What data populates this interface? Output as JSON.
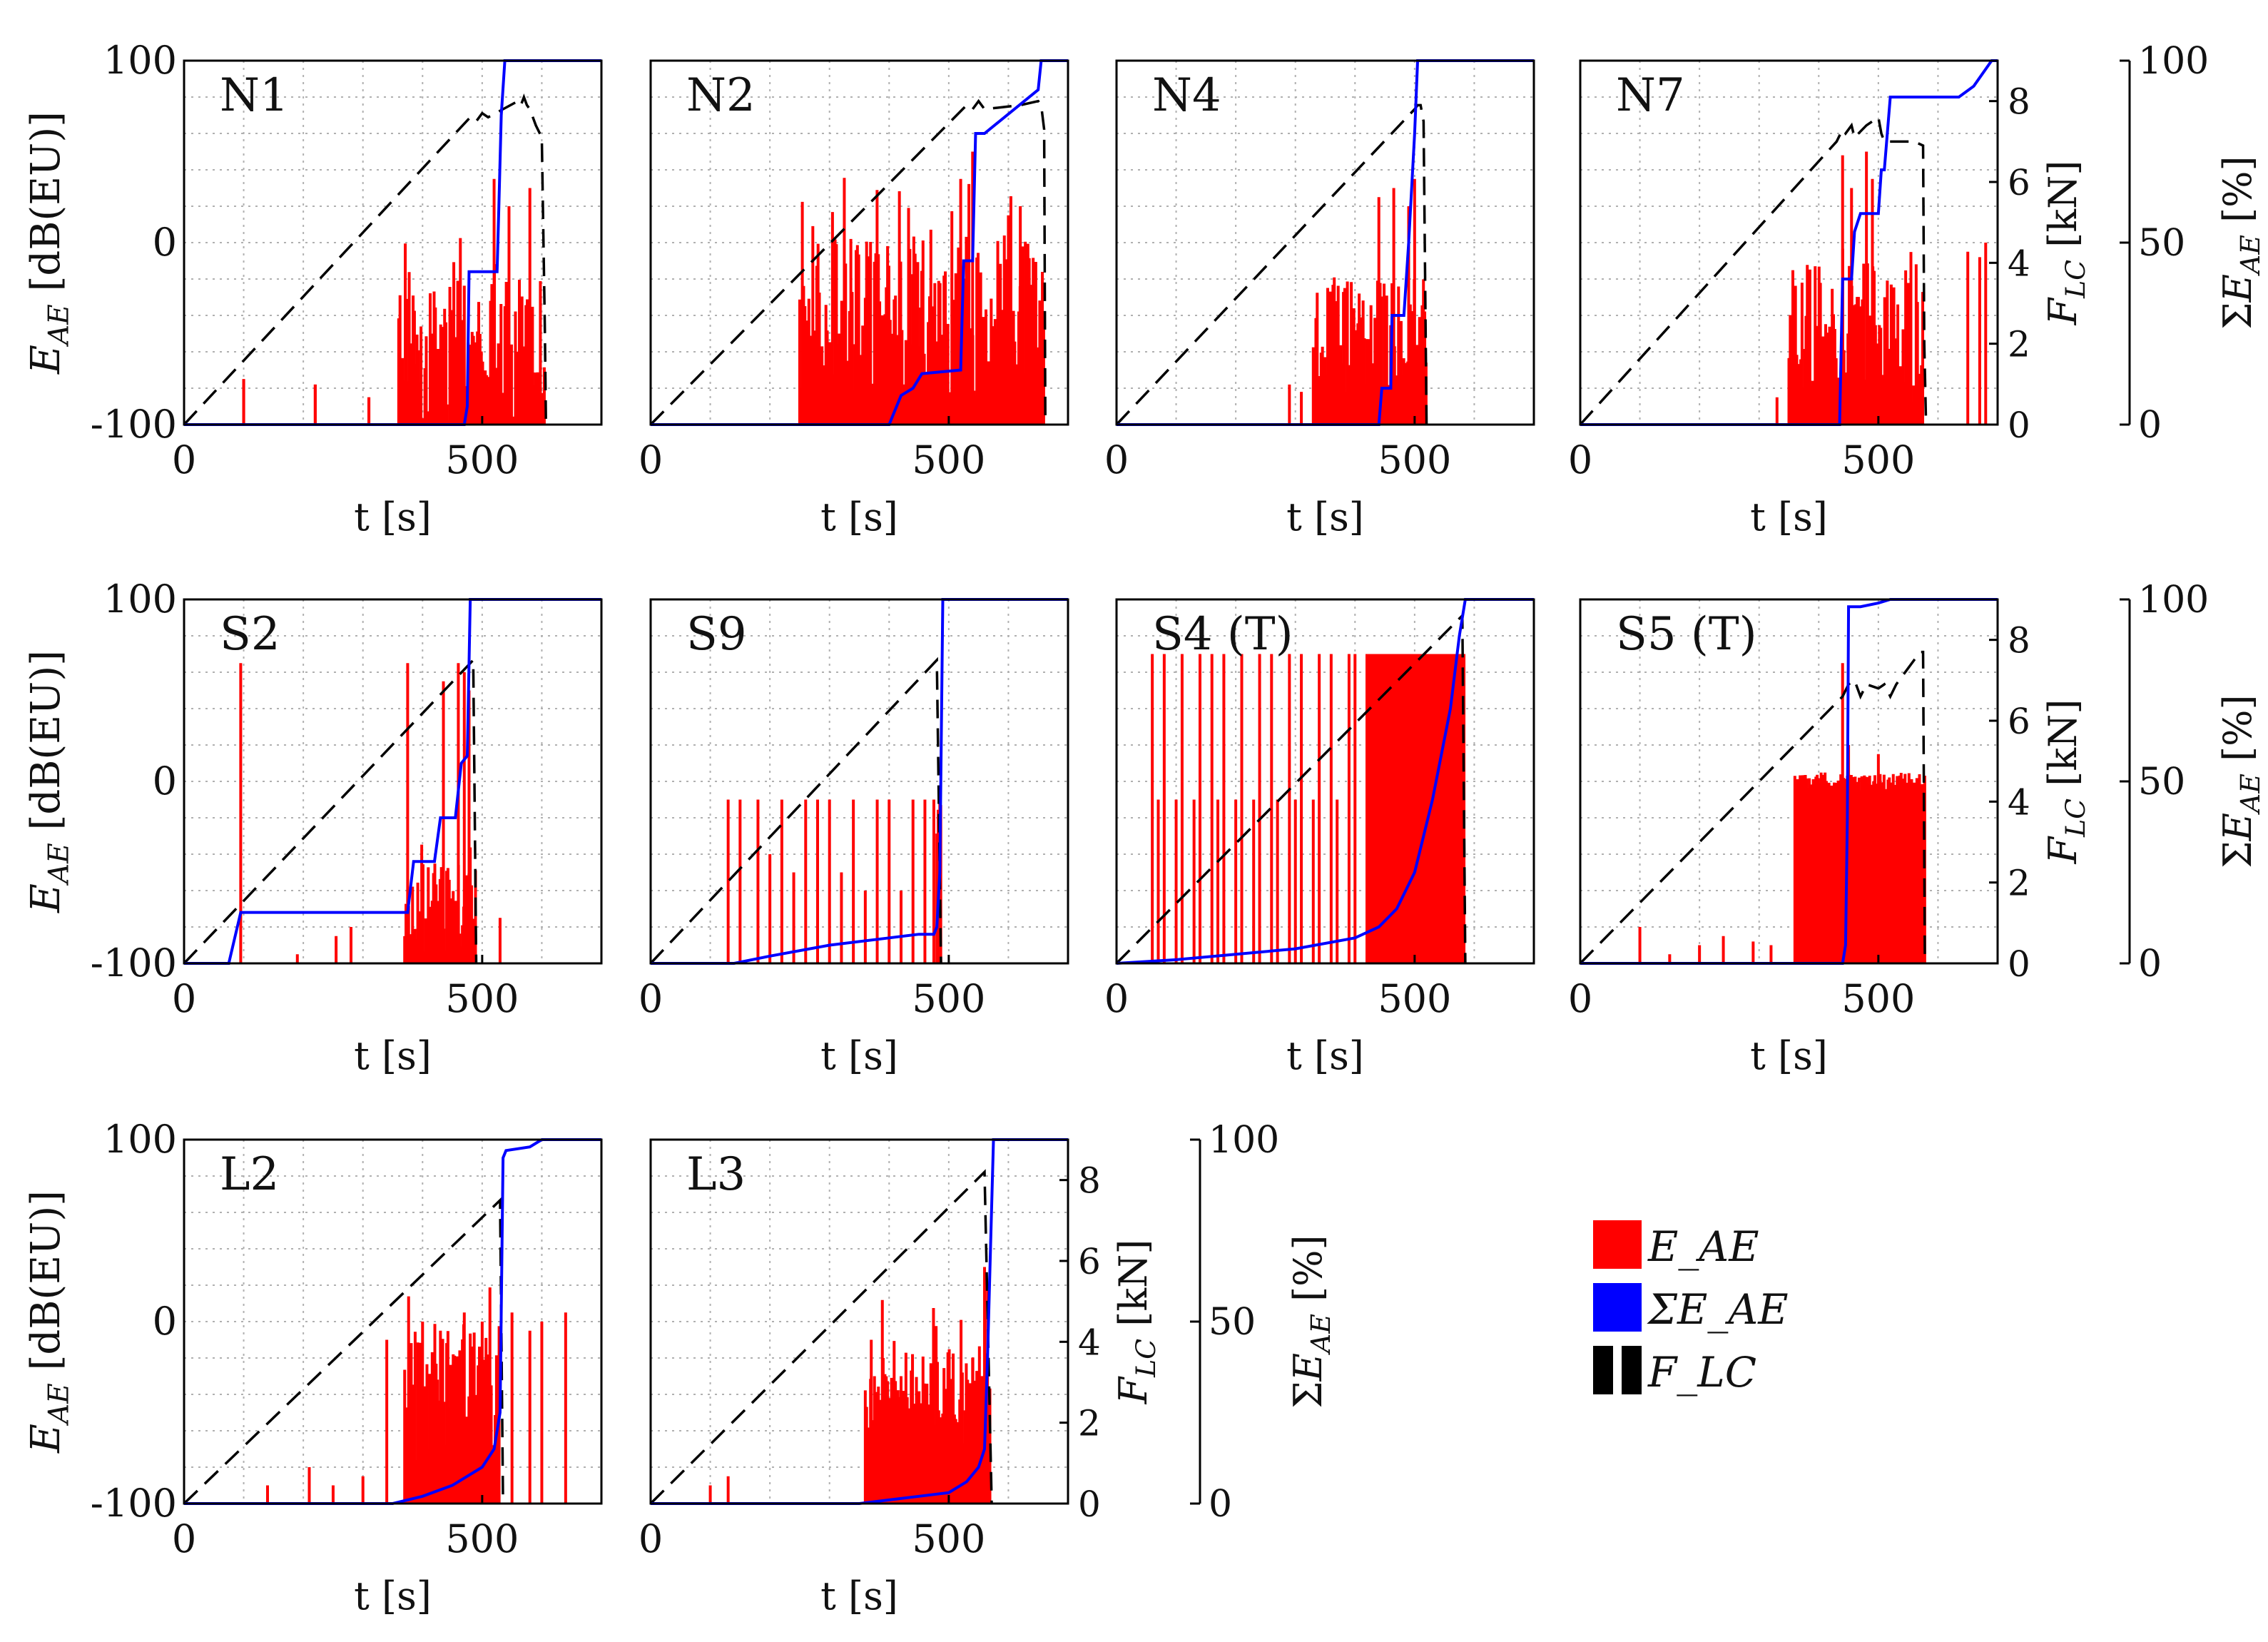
{
  "figure": {
    "tick_labels_x": [
      "0",
      "500"
    ],
    "tick_labels_left": [
      "100",
      "0",
      "-100"
    ],
    "tick_labels_force": [
      "0",
      "2",
      "4",
      "6",
      "8"
    ],
    "tick_labels_pct": [
      "0",
      "50",
      "100"
    ],
    "xlabel": "t [s]",
    "ylabel_left": "E_AE [dB(EU)]",
    "ylabel_force": "F_LC [kN]",
    "ylabel_pct": "ΣE_AE [%]"
  },
  "legend": {
    "items": [
      {
        "label": "E_AE",
        "color": "#ff0000",
        "style": "fill"
      },
      {
        "label": "ΣE_AE",
        "color": "#0000ff",
        "style": "fill"
      },
      {
        "label": "F_LC",
        "color": "#000000",
        "style": "dashed"
      }
    ]
  },
  "colors": {
    "ae": "#ff0000",
    "cum": "#0000ff",
    "force": "#000000",
    "grid": "#b0b0b0"
  },
  "chart_data": [
    {
      "type": "line",
      "title": "N1",
      "xlim": [
        0,
        700
      ],
      "ylim": [
        -100,
        100
      ],
      "y2lim": [
        0,
        9
      ],
      "y3lim": [
        0,
        100
      ],
      "force": {
        "x": [
          0,
          480,
          490,
          500,
          510,
          560,
          565,
          570,
          575,
          580,
          590,
          600,
          605,
          607
        ],
        "y": [
          0,
          7.6,
          7.5,
          7.7,
          7.6,
          8.0,
          7.9,
          8.1,
          7.9,
          7.8,
          7.4,
          7.1,
          2.5,
          0
        ]
      },
      "cumulative": {
        "x": [
          0,
          470,
          475,
          478,
          525,
          528,
          532,
          538,
          545,
          560,
          700
        ],
        "y": [
          0,
          0,
          5,
          42,
          42,
          60,
          85,
          100,
          100,
          100,
          100
        ]
      },
      "ae": {
        "start": 360,
        "end": 605,
        "base": -60,
        "spread": 40,
        "peaks": [
          [
            100,
            -75
          ],
          [
            220,
            -78
          ],
          [
            310,
            -85
          ],
          [
            520,
            35
          ],
          [
            545,
            20
          ],
          [
            580,
            30
          ]
        ],
        "isolated": [
          [
            100,
            -75
          ],
          [
            220,
            -78
          ],
          [
            310,
            -85
          ]
        ]
      }
    },
    {
      "type": "line",
      "title": "N2",
      "xlim": [
        0,
        700
      ],
      "ylim": [
        -100,
        100
      ],
      "y2lim": [
        0,
        9
      ],
      "y3lim": [
        0,
        100
      ],
      "force": {
        "x": [
          0,
          530,
          540,
          550,
          560,
          620,
          650,
          655,
          660,
          662
        ],
        "y": [
          0,
          7.9,
          7.8,
          8.0,
          7.8,
          7.9,
          8.0,
          7.9,
          7.3,
          0
        ]
      },
      "cumulative": {
        "x": [
          0,
          400,
          420,
          440,
          455,
          520,
          525,
          540,
          545,
          550,
          560,
          650,
          655,
          700
        ],
        "y": [
          0,
          0,
          8,
          10,
          14,
          15,
          45,
          45,
          80,
          80,
          80,
          92,
          100,
          100
        ]
      },
      "ae": {
        "start": 250,
        "end": 660,
        "base": -40,
        "spread": 45,
        "peaks": [
          [
            520,
            35
          ],
          [
            540,
            50
          ],
          [
            620,
            20
          ],
          [
            600,
            15
          ]
        ],
        "isolated": []
      }
    },
    {
      "type": "line",
      "title": "N4",
      "xlim": [
        0,
        700
      ],
      "ylim": [
        -100,
        100
      ],
      "y2lim": [
        0,
        9
      ],
      "y3lim": [
        0,
        100
      ],
      "force": {
        "x": [
          0,
          500,
          505,
          510,
          515,
          520
        ],
        "y": [
          0,
          7.8,
          7.9,
          7.9,
          7.5,
          0
        ]
      },
      "cumulative": {
        "x": [
          0,
          440,
          445,
          460,
          462,
          482,
          490,
          500,
          505,
          700
        ],
        "y": [
          0,
          0,
          10,
          10,
          30,
          30,
          50,
          80,
          100,
          100
        ]
      },
      "ae": {
        "start": 330,
        "end": 520,
        "base": -55,
        "spread": 35,
        "peaks": [
          [
            440,
            25
          ],
          [
            465,
            30
          ],
          [
            490,
            20
          ],
          [
            500,
            35
          ]
        ],
        "isolated": [
          [
            290,
            -78
          ],
          [
            310,
            -82
          ]
        ]
      }
    },
    {
      "type": "line",
      "title": "N7",
      "xlim": [
        0,
        700
      ],
      "ylim": [
        -100,
        100
      ],
      "y2lim": [
        0,
        9
      ],
      "y3lim": [
        0,
        100
      ],
      "force": {
        "x": [
          0,
          430,
          440,
          445,
          455,
          460,
          480,
          500,
          505,
          510,
          560,
          575,
          577,
          580
        ],
        "y": [
          0,
          7.0,
          7.3,
          7.2,
          7.4,
          7.1,
          7.4,
          7.6,
          7.2,
          7.0,
          7.0,
          6.9,
          2.0,
          0
        ]
      },
      "cumulative": {
        "x": [
          0,
          435,
          440,
          455,
          460,
          470,
          500,
          505,
          510,
          520,
          635,
          660,
          690,
          700
        ],
        "y": [
          0,
          0,
          40,
          40,
          53,
          58,
          58,
          70,
          70,
          90,
          90,
          93,
          100,
          100
        ]
      },
      "ae": {
        "start": 350,
        "end": 575,
        "base": -50,
        "spread": 40,
        "peaks": [
          [
            440,
            48
          ],
          [
            455,
            30
          ],
          [
            480,
            50
          ],
          [
            490,
            35
          ]
        ],
        "isolated": [
          [
            330,
            -85
          ],
          [
            370,
            -75
          ],
          [
            650,
            -5
          ],
          [
            670,
            -8
          ],
          [
            680,
            0
          ]
        ]
      }
    },
    {
      "type": "line",
      "title": "S2",
      "xlim": [
        0,
        700
      ],
      "ylim": [
        -100,
        100
      ],
      "y2lim": [
        0,
        9
      ],
      "y3lim": [
        0,
        100
      ],
      "force": {
        "x": [
          0,
          485,
          490
        ],
        "y": [
          0,
          7.5,
          0
        ]
      },
      "cumulative": {
        "x": [
          0,
          75,
          95,
          375,
          385,
          420,
          430,
          455,
          465,
          475,
          480,
          500,
          700
        ],
        "y": [
          0,
          0,
          14,
          14,
          28,
          28,
          40,
          40,
          55,
          57,
          100,
          100,
          100
        ]
      },
      "ae": {
        "start": 370,
        "end": 490,
        "base": -70,
        "spread": 25,
        "peaks": [
          [
            375,
            65
          ],
          [
            435,
            55
          ],
          [
            460,
            65
          ],
          [
            470,
            60
          ],
          [
            478,
            50
          ]
        ],
        "isolated": [
          [
            95,
            65
          ],
          [
            190,
            -95
          ],
          [
            255,
            -85
          ],
          [
            280,
            -80
          ],
          [
            530,
            -75
          ]
        ]
      }
    },
    {
      "type": "line",
      "title": "S9",
      "xlim": [
        0,
        700
      ],
      "ylim": [
        -100,
        100
      ],
      "y2lim": [
        0,
        9
      ],
      "y3lim": [
        0,
        100
      ],
      "force": {
        "x": [
          0,
          480,
          487
        ],
        "y": [
          0,
          7.5,
          0
        ]
      },
      "cumulative": {
        "x": [
          0,
          140,
          200,
          300,
          400,
          450,
          475,
          480,
          485,
          490,
          500,
          700
        ],
        "y": [
          0,
          0,
          2,
          5,
          7,
          8,
          8,
          10,
          25,
          100,
          100,
          100
        ]
      },
      "ae": {
        "start": 480,
        "end": 487,
        "base": -20,
        "spread": 10,
        "peaks": [],
        "isolated": [
          [
            130,
            -10
          ],
          [
            150,
            -10
          ],
          [
            180,
            -10
          ],
          [
            200,
            -40
          ],
          [
            220,
            -10
          ],
          [
            240,
            -50
          ],
          [
            260,
            -10
          ],
          [
            280,
            -10
          ],
          [
            300,
            -10
          ],
          [
            320,
            -50
          ],
          [
            340,
            -10
          ],
          [
            360,
            -60
          ],
          [
            380,
            -10
          ],
          [
            400,
            -10
          ],
          [
            420,
            -60
          ],
          [
            440,
            -10
          ],
          [
            460,
            -10
          ],
          [
            475,
            -10
          ],
          [
            485,
            -5
          ]
        ]
      }
    },
    {
      "type": "line",
      "title": "S4 (T)",
      "xlim": [
        0,
        700
      ],
      "ylim": [
        -100,
        100
      ],
      "y2lim": [
        0,
        9
      ],
      "y3lim": [
        0,
        100
      ],
      "force": {
        "x": [
          0,
          580,
          585
        ],
        "y": [
          0,
          8.6,
          0
        ]
      },
      "cumulative": {
        "x": [
          0,
          100,
          300,
          400,
          440,
          470,
          500,
          530,
          560,
          575,
          585,
          700
        ],
        "y": [
          0,
          1,
          4,
          7,
          10,
          15,
          25,
          45,
          70,
          90,
          100,
          100
        ]
      },
      "ae": {
        "start": 420,
        "end": 585,
        "base": 70,
        "spread": 0,
        "peaks": [],
        "isolated": [
          [
            60,
            70
          ],
          [
            80,
            70
          ],
          [
            110,
            70
          ],
          [
            140,
            70
          ],
          [
            160,
            70
          ],
          [
            180,
            70
          ],
          [
            210,
            70
          ],
          [
            240,
            70
          ],
          [
            260,
            70
          ],
          [
            290,
            70
          ],
          [
            310,
            70
          ],
          [
            340,
            70
          ],
          [
            360,
            70
          ],
          [
            390,
            70
          ],
          [
            400,
            70
          ],
          [
            70,
            -10
          ],
          [
            100,
            -10
          ],
          [
            130,
            -10
          ],
          [
            170,
            -10
          ],
          [
            200,
            -10
          ],
          [
            230,
            -10
          ],
          [
            270,
            -10
          ],
          [
            300,
            -10
          ],
          [
            330,
            -10
          ],
          [
            370,
            -10
          ]
        ]
      }
    },
    {
      "type": "line",
      "title": "S5 (T)",
      "xlim": [
        0,
        700
      ],
      "ylim": [
        -100,
        100
      ],
      "y2lim": [
        0,
        9
      ],
      "y3lim": [
        0,
        100
      ],
      "force": {
        "x": [
          0,
          440,
          450,
          460,
          470,
          480,
          500,
          510,
          520,
          530,
          560,
          570,
          575,
          578
        ],
        "y": [
          0,
          6.6,
          6.9,
          7.0,
          6.6,
          6.9,
          6.8,
          6.9,
          6.6,
          6.9,
          7.5,
          7.7,
          7.7,
          0
        ]
      },
      "cumulative": {
        "x": [
          0,
          360,
          440,
          445,
          448,
          450,
          470,
          500,
          520,
          700
        ],
        "y": [
          0,
          0,
          0,
          5,
          40,
          98,
          98,
          99,
          100,
          100
        ]
      },
      "ae": {
        "start": 360,
        "end": 578,
        "base": 0,
        "spread": 5,
        "peaks": [
          [
            440,
            65
          ],
          [
            450,
            20
          ],
          [
            500,
            15
          ]
        ],
        "isolated": [
          [
            100,
            -80
          ],
          [
            150,
            -95
          ],
          [
            200,
            -90
          ],
          [
            240,
            -85
          ],
          [
            290,
            -88
          ],
          [
            320,
            -90
          ]
        ]
      }
    },
    {
      "type": "line",
      "title": "L2",
      "xlim": [
        0,
        700
      ],
      "ylim": [
        -100,
        100
      ],
      "y2lim": [
        0,
        9
      ],
      "y3lim": [
        0,
        100
      ],
      "force": {
        "x": [
          0,
          530,
          535
        ],
        "y": [
          0,
          7.5,
          0
        ]
      },
      "cumulative": {
        "x": [
          0,
          350,
          400,
          450,
          500,
          520,
          530,
          535,
          540,
          580,
          600,
          700
        ],
        "y": [
          0,
          0,
          2,
          5,
          10,
          15,
          25,
          95,
          97,
          98,
          100,
          100
        ]
      },
      "ae": {
        "start": 370,
        "end": 530,
        "base": -40,
        "spread": 40,
        "peaks": [
          [
            400,
            0
          ],
          [
            430,
            -5
          ],
          [
            470,
            5
          ],
          [
            500,
            0
          ]
        ],
        "isolated": [
          [
            140,
            -90
          ],
          [
            210,
            -80
          ],
          [
            250,
            -90
          ],
          [
            300,
            -85
          ],
          [
            340,
            -10
          ],
          [
            550,
            5
          ],
          [
            580,
            -5
          ],
          [
            600,
            0
          ],
          [
            640,
            5
          ]
        ]
      }
    },
    {
      "type": "line",
      "title": "L3",
      "xlim": [
        0,
        700
      ],
      "ylim": [
        -100,
        100
      ],
      "y2lim": [
        0,
        9
      ],
      "y3lim": [
        0,
        100
      ],
      "force": {
        "x": [
          0,
          560,
          572
        ],
        "y": [
          0,
          8.2,
          0
        ]
      },
      "cumulative": {
        "x": [
          0,
          350,
          400,
          450,
          500,
          530,
          550,
          560,
          565,
          570,
          575,
          700
        ],
        "y": [
          0,
          0,
          1,
          2,
          3,
          6,
          10,
          15,
          40,
          70,
          100,
          100
        ]
      },
      "ae": {
        "start": 360,
        "end": 570,
        "base": -40,
        "spread": 30,
        "peaks": [
          [
            560,
            30
          ],
          [
            565,
            20
          ],
          [
            540,
            -20
          ]
        ],
        "isolated": [
          [
            100,
            -90
          ],
          [
            130,
            -85
          ],
          [
            370,
            -10
          ],
          [
            390,
            -20
          ],
          [
            420,
            -30
          ]
        ]
      }
    }
  ]
}
